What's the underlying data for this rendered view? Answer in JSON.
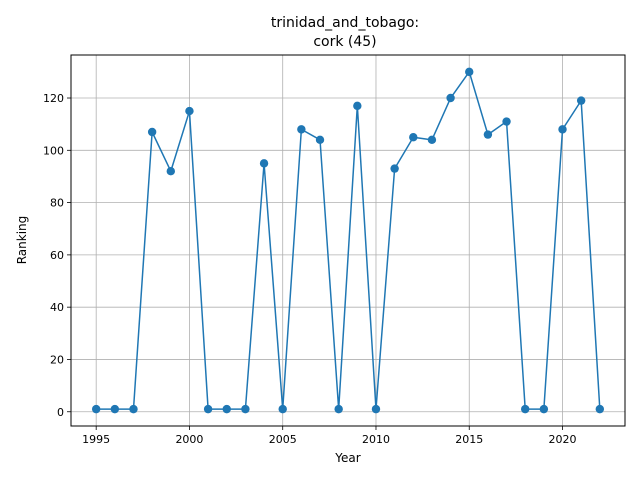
{
  "chart_data": {
    "type": "line",
    "title_line1": "trinidad_and_tobago:",
    "title_line2": "cork (45)",
    "xlabel": "Year",
    "ylabel": "Ranking",
    "xlim": [
      1993.65,
      2023.35
    ],
    "ylim": [
      -5.45,
      136.45
    ],
    "xticks": [
      1995,
      2000,
      2005,
      2010,
      2015,
      2020
    ],
    "yticks": [
      0,
      20,
      40,
      60,
      80,
      100,
      120
    ],
    "grid": true,
    "legend": false,
    "series": [
      {
        "color": "#1f77b4",
        "marker": "circle",
        "x": [
          1995,
          1996,
          1997,
          1998,
          1999,
          2000,
          2001,
          2002,
          2003,
          2004,
          2005,
          2006,
          2007,
          2008,
          2009,
          2010,
          2011,
          2012,
          2013,
          2014,
          2015,
          2016,
          2017,
          2018,
          2019,
          2020,
          2021,
          2022
        ],
        "y": [
          1,
          1,
          1,
          107,
          92,
          115,
          1,
          1,
          1,
          95,
          1,
          108,
          104,
          1,
          117,
          1,
          93,
          105,
          104,
          120,
          130,
          106,
          111,
          1,
          1,
          108,
          119,
          1
        ]
      }
    ]
  }
}
